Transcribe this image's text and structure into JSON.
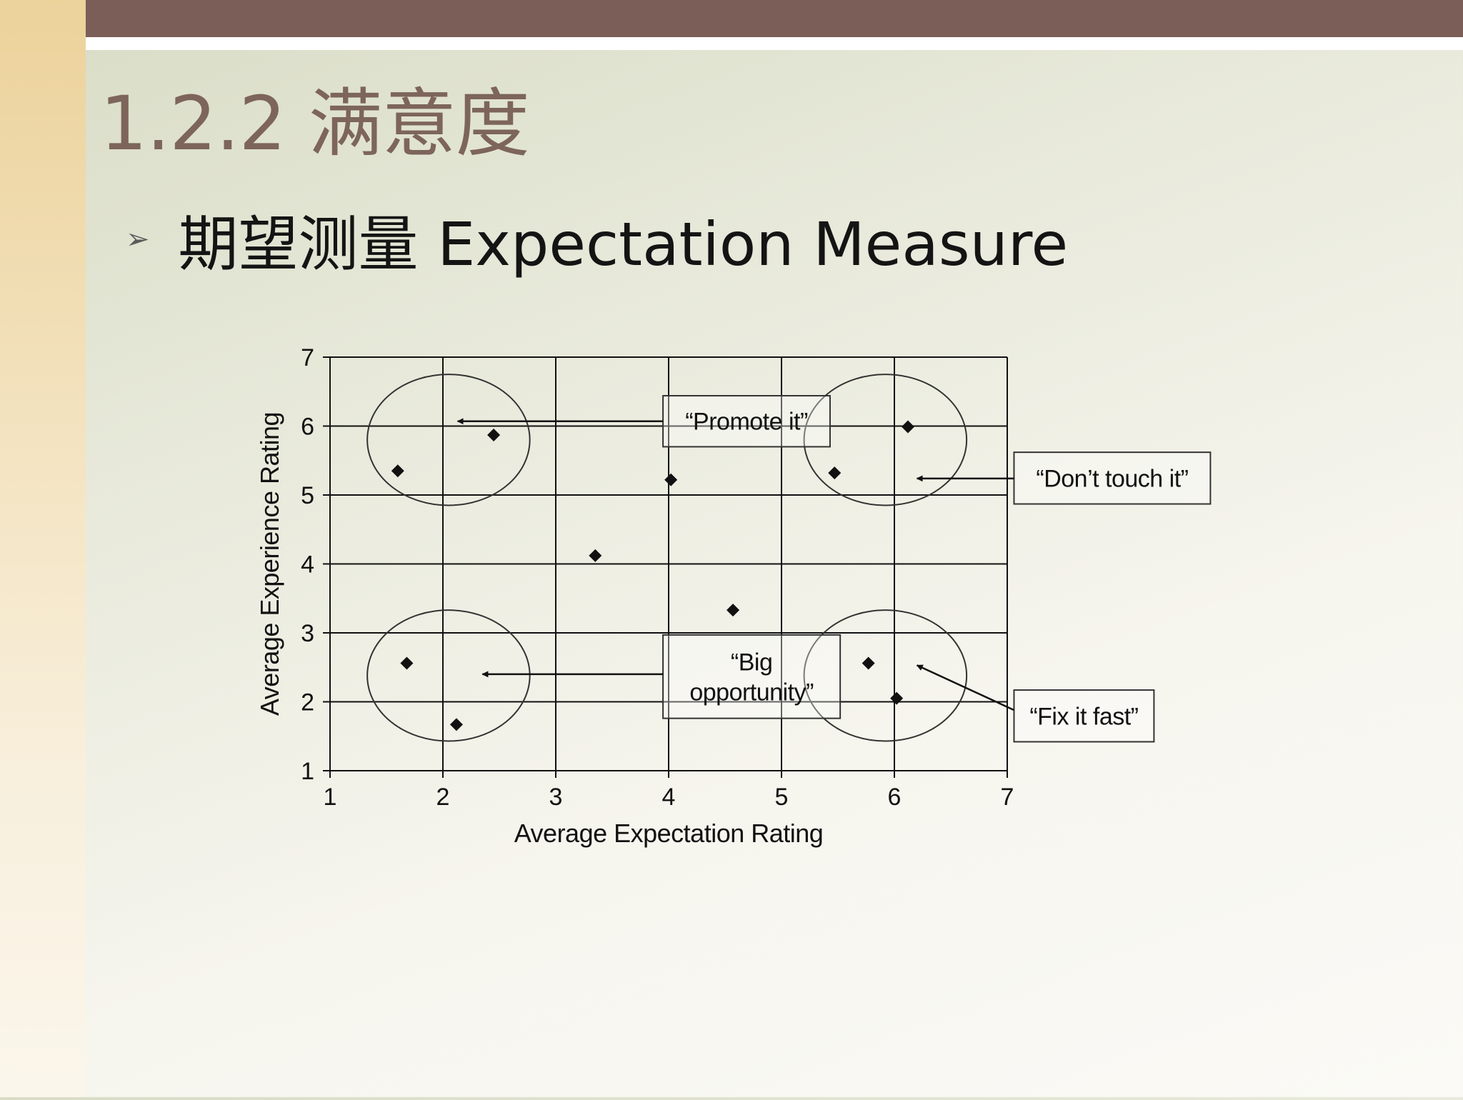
{
  "slide": {
    "title": "1.2.2 满意度",
    "bullet_marker": "➢",
    "bullet_text": "期望测量 Expectation Measure"
  },
  "colors": {
    "top_bar": "#7b5e57",
    "title_text": "#7d655b",
    "chart_ink": "#111111"
  },
  "chart_data": {
    "type": "scatter",
    "title": "",
    "xlabel": "Average Expectation Rating",
    "ylabel": "Average Experience Rating",
    "xlim": [
      1,
      7
    ],
    "ylim": [
      1,
      7
    ],
    "xticks": [
      1,
      2,
      3,
      4,
      5,
      6,
      7
    ],
    "yticks": [
      1,
      2,
      3,
      4,
      5,
      6,
      7
    ],
    "grid": true,
    "points": [
      {
        "x": 1.6,
        "y": 5.35
      },
      {
        "x": 2.45,
        "y": 5.87
      },
      {
        "x": 4.02,
        "y": 5.22
      },
      {
        "x": 3.35,
        "y": 4.12
      },
      {
        "x": 5.47,
        "y": 5.32
      },
      {
        "x": 6.12,
        "y": 5.99
      },
      {
        "x": 4.57,
        "y": 3.33
      },
      {
        "x": 1.68,
        "y": 2.56
      },
      {
        "x": 2.12,
        "y": 1.67
      },
      {
        "x": 5.77,
        "y": 2.56
      },
      {
        "x": 6.02,
        "y": 2.05
      }
    ],
    "regions": [
      {
        "cx": 2.05,
        "cy": 5.8,
        "rx": 0.72,
        "ry": 0.95
      },
      {
        "cx": 5.92,
        "cy": 5.8,
        "rx": 0.72,
        "ry": 0.95
      },
      {
        "cx": 2.05,
        "cy": 2.38,
        "rx": 0.72,
        "ry": 0.95
      },
      {
        "cx": 5.92,
        "cy": 2.38,
        "rx": 0.72,
        "ry": 0.95
      }
    ],
    "annotations": [
      {
        "lines": [
          "“Promote it”"
        ],
        "box": [
          3.95,
          6.44,
          5.43,
          5.7
        ],
        "arrow_from": [
          3.95,
          6.07
        ],
        "arrow_to": [
          2.13,
          6.07
        ]
      },
      {
        "lines": [
          "“Don’t touch it”"
        ],
        "box": [
          7.06,
          5.62,
          8.8,
          4.87
        ],
        "arrow_from": [
          7.06,
          5.24
        ],
        "arrow_to": [
          6.2,
          5.24
        ]
      },
      {
        "lines": [
          "“Big",
          "opportunity”"
        ],
        "box": [
          3.95,
          2.97,
          5.52,
          1.76
        ],
        "arrow_from": [
          3.95,
          2.4
        ],
        "arrow_to": [
          2.35,
          2.4
        ]
      },
      {
        "lines": [
          "“Fix it fast”"
        ],
        "box": [
          7.06,
          2.17,
          8.3,
          1.42
        ],
        "arrow_from": [
          7.06,
          1.88
        ],
        "arrow_to": [
          6.2,
          2.53
        ]
      }
    ]
  }
}
